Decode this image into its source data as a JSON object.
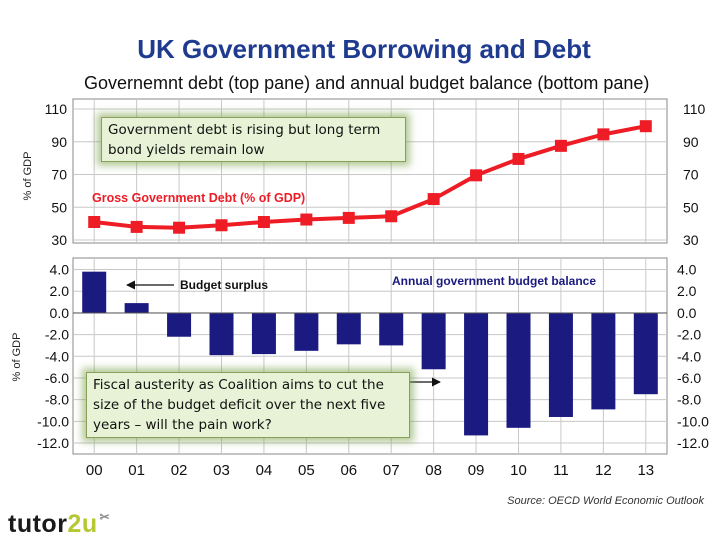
{
  "header": {
    "title": "UK Government Borrowing and Debt",
    "subtitle": "Governemnt debt (top pane) and annual budget balance (bottom pane)"
  },
  "annotations": {
    "debt_note": "Government debt is rising but long term bond yields remain low",
    "austerity_note": "Fiscal austerity as Coalition aims to cut the size of the budget deficit over the next five years – will the pain work?"
  },
  "source": "Source: OECD World Economic Outlook",
  "logo": {
    "part1": "tutor",
    "part2": "2u",
    "mark": "✂"
  },
  "colors": {
    "title": "#1f3b8f",
    "debt_line": "#ee1c25",
    "bars": "#1a1a80",
    "grid": "#c8c8c8",
    "note_bg": "#e8f2d6"
  },
  "chart_data": [
    {
      "type": "line",
      "title": "Gross Government Debt (% of GDP)",
      "ylabel": "% of GDP",
      "ylim": [
        30,
        110
      ],
      "yticks": [
        30,
        50,
        70,
        90,
        110
      ],
      "categories": [
        "00",
        "01",
        "02",
        "03",
        "04",
        "05",
        "06",
        "07",
        "08",
        "09",
        "10",
        "11",
        "12",
        "13"
      ],
      "series": [
        {
          "name": "Gross Government Debt (% of GDP)",
          "values": [
            41,
            38,
            37.5,
            39,
            41,
            42.5,
            43.5,
            44.5,
            55,
            69.5,
            79.5,
            87.5,
            94.5,
            99.5
          ]
        }
      ],
      "ytick_labels": [
        "30",
        "50",
        "70",
        "90",
        "110"
      ],
      "grid": true
    },
    {
      "type": "bar",
      "title": "Annual government budget balance",
      "ylabel": "% of GDP",
      "ylim": [
        -12,
        4
      ],
      "yticks": [
        4,
        2,
        0,
        -2,
        -4,
        -6,
        -8,
        -10,
        -12
      ],
      "ytick_labels": [
        "4.0",
        "2.0",
        "0.0",
        "-2.0",
        "-4.0",
        "-6.0",
        "-8.0",
        "-10.0",
        "-12.0"
      ],
      "categories": [
        "00",
        "01",
        "02",
        "03",
        "04",
        "05",
        "06",
        "07",
        "08",
        "09",
        "10",
        "11",
        "12",
        "13"
      ],
      "series": [
        {
          "name": "Annual government budget balance",
          "values": [
            3.8,
            0.9,
            -2.2,
            -3.9,
            -3.8,
            -3.5,
            -2.9,
            -3.0,
            -5.2,
            -11.3,
            -10.6,
            -9.6,
            -8.9,
            -7.5
          ]
        }
      ],
      "annotations": [
        {
          "text": "Budget surplus",
          "points_to": "01"
        }
      ],
      "grid": true
    }
  ]
}
